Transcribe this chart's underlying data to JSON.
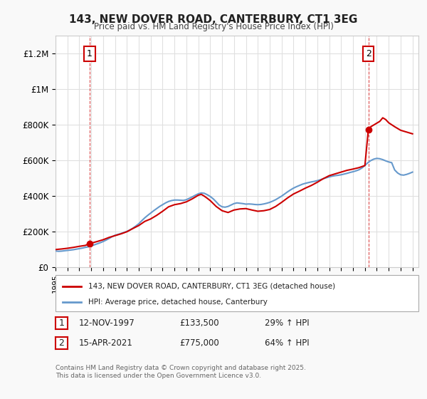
{
  "title": "143, NEW DOVER ROAD, CANTERBURY, CT1 3EG",
  "subtitle": "Price paid vs. HM Land Registry's House Price Index (HPI)",
  "ylabel_ticks": [
    "£0",
    "£200K",
    "£400K",
    "£600K",
    "£800K",
    "£1M",
    "£1.2M"
  ],
  "ytick_values": [
    0,
    200000,
    400000,
    600000,
    800000,
    1000000,
    1200000
  ],
  "ylim": [
    0,
    1300000
  ],
  "xlim_start": 1995.0,
  "xlim_end": 2025.5,
  "background_color": "#f9f9f9",
  "plot_bg_color": "#ffffff",
  "grid_color": "#e0e0e0",
  "red_color": "#cc0000",
  "blue_color": "#6699cc",
  "marker1_date": 1997.87,
  "marker1_price": 133500,
  "marker2_date": 2021.29,
  "marker2_price": 775000,
  "legend_label_red": "143, NEW DOVER ROAD, CANTERBURY, CT1 3EG (detached house)",
  "legend_label_blue": "HPI: Average price, detached house, Canterbury",
  "annotation1_label": "1",
  "annotation2_label": "2",
  "table_row1": [
    "1",
    "12-NOV-1997",
    "£133,500",
    "29% ↑ HPI"
  ],
  "table_row2": [
    "2",
    "15-APR-2021",
    "£775,000",
    "64% ↑ HPI"
  ],
  "footer": "Contains HM Land Registry data © Crown copyright and database right 2025.\nThis data is licensed under the Open Government Licence v3.0.",
  "hpi_years": [
    1995.0,
    1995.25,
    1995.5,
    1995.75,
    1996.0,
    1996.25,
    1996.5,
    1996.75,
    1997.0,
    1997.25,
    1997.5,
    1997.75,
    1998.0,
    1998.25,
    1998.5,
    1998.75,
    1999.0,
    1999.25,
    1999.5,
    1999.75,
    2000.0,
    2000.25,
    2000.5,
    2000.75,
    2001.0,
    2001.25,
    2001.5,
    2001.75,
    2002.0,
    2002.25,
    2002.5,
    2002.75,
    2003.0,
    2003.25,
    2003.5,
    2003.75,
    2004.0,
    2004.25,
    2004.5,
    2004.75,
    2005.0,
    2005.25,
    2005.5,
    2005.75,
    2006.0,
    2006.25,
    2006.5,
    2006.75,
    2007.0,
    2007.25,
    2007.5,
    2007.75,
    2008.0,
    2008.25,
    2008.5,
    2008.75,
    2009.0,
    2009.25,
    2009.5,
    2009.75,
    2010.0,
    2010.25,
    2010.5,
    2010.75,
    2011.0,
    2011.25,
    2011.5,
    2011.75,
    2012.0,
    2012.25,
    2012.5,
    2012.75,
    2013.0,
    2013.25,
    2013.5,
    2013.75,
    2014.0,
    2014.25,
    2014.5,
    2014.75,
    2015.0,
    2015.25,
    2015.5,
    2015.75,
    2016.0,
    2016.25,
    2016.5,
    2016.75,
    2017.0,
    2017.25,
    2017.5,
    2017.75,
    2018.0,
    2018.25,
    2018.5,
    2018.75,
    2019.0,
    2019.25,
    2019.5,
    2019.75,
    2020.0,
    2020.25,
    2020.5,
    2020.75,
    2021.0,
    2021.25,
    2021.5,
    2021.75,
    2022.0,
    2022.25,
    2022.5,
    2022.75,
    2023.0,
    2023.25,
    2023.5,
    2023.75,
    2024.0,
    2024.25,
    2024.5,
    2024.75,
    2025.0
  ],
  "hpi_values": [
    92000,
    90000,
    91000,
    93000,
    95000,
    97000,
    99000,
    102000,
    105000,
    108000,
    112000,
    115000,
    120000,
    126000,
    132000,
    138000,
    145000,
    153000,
    162000,
    172000,
    180000,
    185000,
    190000,
    196000,
    202000,
    210000,
    220000,
    232000,
    245000,
    262000,
    278000,
    292000,
    305000,
    318000,
    330000,
    342000,
    352000,
    362000,
    370000,
    375000,
    378000,
    378000,
    377000,
    376000,
    380000,
    388000,
    396000,
    405000,
    413000,
    418000,
    416000,
    408000,
    398000,
    385000,
    368000,
    350000,
    340000,
    338000,
    342000,
    350000,
    358000,
    362000,
    360000,
    358000,
    355000,
    356000,
    355000,
    353000,
    352000,
    353000,
    356000,
    360000,
    365000,
    372000,
    380000,
    390000,
    400000,
    412000,
    424000,
    435000,
    445000,
    453000,
    460000,
    467000,
    472000,
    476000,
    480000,
    483000,
    487000,
    492000,
    498000,
    503000,
    508000,
    512000,
    515000,
    517000,
    520000,
    524000,
    528000,
    533000,
    537000,
    542000,
    548000,
    558000,
    572000,
    588000,
    600000,
    608000,
    612000,
    610000,
    605000,
    598000,
    592000,
    588000,
    547000,
    530000,
    520000,
    518000,
    522000,
    528000,
    535000
  ],
  "red_years": [
    1995.0,
    1995.5,
    1996.0,
    1996.5,
    1997.0,
    1997.5,
    1997.87,
    1998.5,
    1999.0,
    1999.5,
    2000.0,
    2000.5,
    2001.0,
    2001.5,
    2002.0,
    2002.5,
    2003.0,
    2003.5,
    2004.0,
    2004.5,
    2005.0,
    2005.5,
    2006.0,
    2006.5,
    2007.0,
    2007.25,
    2007.5,
    2007.75,
    2008.0,
    2008.5,
    2009.0,
    2009.5,
    2010.0,
    2010.5,
    2011.0,
    2011.5,
    2012.0,
    2012.5,
    2013.0,
    2013.5,
    2014.0,
    2014.5,
    2015.0,
    2015.5,
    2016.0,
    2016.5,
    2017.0,
    2017.5,
    2018.0,
    2018.5,
    2019.0,
    2019.5,
    2020.0,
    2020.5,
    2021.0,
    2021.29,
    2021.5,
    2021.75,
    2022.0,
    2022.25,
    2022.5,
    2022.75,
    2023.0,
    2023.5,
    2024.0,
    2024.5,
    2025.0
  ],
  "red_values": [
    100000,
    103000,
    107000,
    112000,
    118000,
    123000,
    133500,
    145000,
    155000,
    168000,
    178000,
    188000,
    200000,
    218000,
    235000,
    258000,
    272000,
    292000,
    315000,
    340000,
    352000,
    358000,
    368000,
    385000,
    405000,
    410000,
    400000,
    388000,
    375000,
    342000,
    318000,
    308000,
    322000,
    328000,
    330000,
    322000,
    315000,
    318000,
    325000,
    342000,
    365000,
    390000,
    412000,
    428000,
    445000,
    460000,
    478000,
    498000,
    515000,
    525000,
    535000,
    545000,
    552000,
    560000,
    572000,
    775000,
    790000,
    800000,
    810000,
    820000,
    840000,
    830000,
    812000,
    790000,
    770000,
    760000,
    750000
  ]
}
